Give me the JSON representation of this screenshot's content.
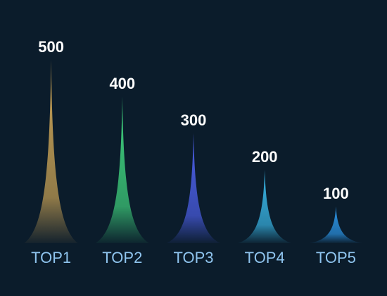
{
  "chart_data": {
    "type": "spike",
    "categories": [
      "TOP1",
      "TOP2",
      "TOP3",
      "TOP4",
      "TOP5"
    ],
    "values": [
      500,
      400,
      300,
      200,
      100
    ],
    "colors": [
      "#c9a255",
      "#3fd07c",
      "#4b5ee6",
      "#38b4e4",
      "#2b92e2"
    ],
    "ylim": [
      0,
      500
    ]
  }
}
